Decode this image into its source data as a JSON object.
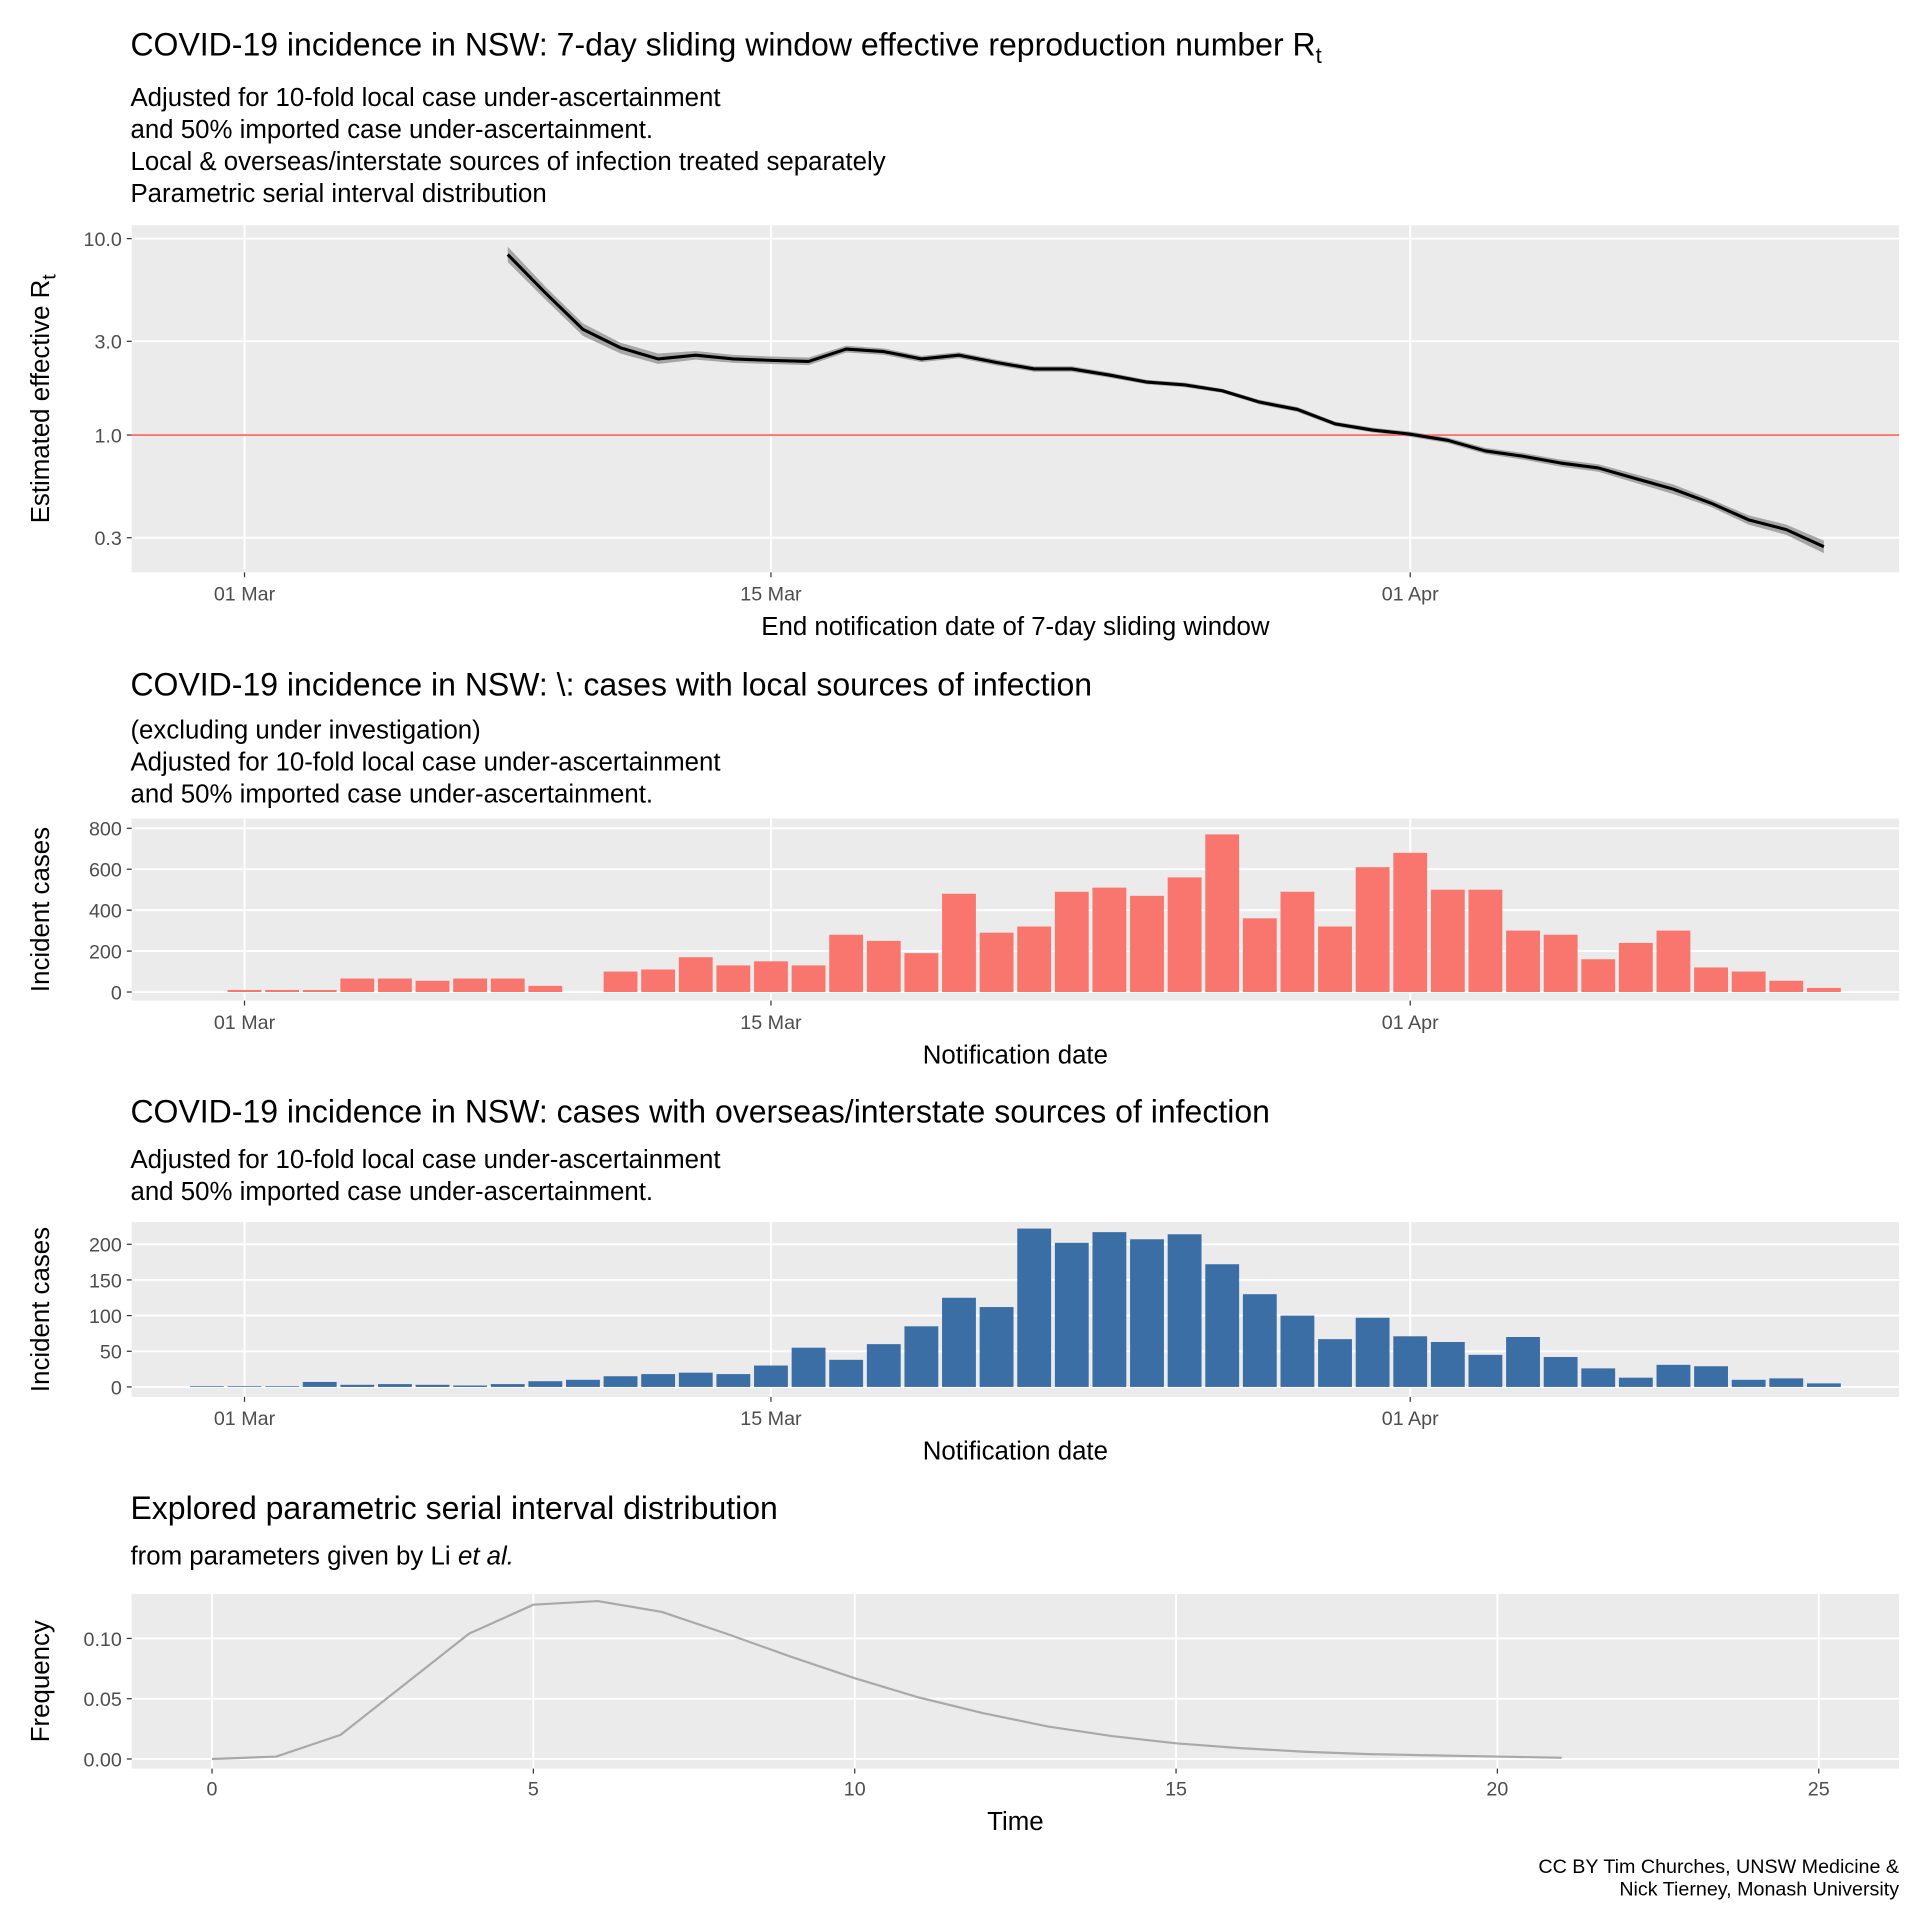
{
  "chart_data": [
    {
      "type": "line",
      "title": "COVID-19 incidence in NSW: 7-day sliding window effective reproduction number R",
      "title_sub": "t",
      "subtitle": [
        "Adjusted for 10-fold local case under-ascertainment",
        "and 50% imported case under-ascertainment.",
        "Local & overseas/interstate sources of infection treated separately",
        "Parametric serial interval distribution"
      ],
      "xlabel": "End notification date of 7-day sliding window",
      "ylabel": "Estimated effective R",
      "ylabel_sub": "t",
      "x": [
        "03-08",
        "03-09",
        "03-10",
        "03-11",
        "03-12",
        "03-13",
        "03-14",
        "03-15",
        "03-16",
        "03-17",
        "03-18",
        "03-19",
        "03-20",
        "03-21",
        "03-22",
        "03-23",
        "03-24",
        "03-25",
        "03-26",
        "03-27",
        "03-28",
        "03-29",
        "03-30",
        "03-31",
        "04-01",
        "04-02",
        "04-03",
        "04-04",
        "04-05",
        "04-06",
        "04-07",
        "04-08",
        "04-09",
        "04-10",
        "04-11",
        "04-12"
      ],
      "values": [
        8.3,
        5.3,
        3.45,
        2.78,
        2.44,
        2.55,
        2.44,
        2.4,
        2.37,
        2.74,
        2.66,
        2.44,
        2.55,
        2.34,
        2.17,
        2.17,
        2.02,
        1.86,
        1.8,
        1.68,
        1.47,
        1.35,
        1.14,
        1.06,
        1.01,
        0.94,
        0.83,
        0.78,
        0.72,
        0.68,
        0.6,
        0.53,
        0.45,
        0.37,
        0.33,
        0.27
      ],
      "lower": [
        7.6,
        4.9,
        3.2,
        2.6,
        2.3,
        2.42,
        2.33,
        2.3,
        2.27,
        2.63,
        2.56,
        2.35,
        2.46,
        2.26,
        2.1,
        2.1,
        1.96,
        1.81,
        1.75,
        1.64,
        1.43,
        1.31,
        1.11,
        1.03,
        0.98,
        0.91,
        0.8,
        0.75,
        0.69,
        0.65,
        0.57,
        0.5,
        0.43,
        0.35,
        0.31,
        0.25
      ],
      "upper": [
        9.1,
        5.7,
        3.7,
        2.95,
        2.6,
        2.68,
        2.56,
        2.51,
        2.48,
        2.85,
        2.76,
        2.53,
        2.64,
        2.42,
        2.24,
        2.24,
        2.08,
        1.91,
        1.85,
        1.72,
        1.51,
        1.39,
        1.17,
        1.09,
        1.04,
        0.97,
        0.86,
        0.81,
        0.75,
        0.71,
        0.63,
        0.56,
        0.47,
        0.39,
        0.35,
        0.29
      ],
      "color": "#000000",
      "ribbon_color": "#a6a6a6",
      "hline": {
        "value": 1,
        "color": "#f8766d"
      },
      "log_y": true,
      "grid": true,
      "xlim": [
        "02-27",
        "04-14"
      ],
      "xticks": [
        {
          "value": "03-01",
          "label": "01 Mar"
        },
        {
          "value": "03-15",
          "label": "15 Mar"
        },
        {
          "value": "04-01",
          "label": "01 Apr"
        }
      ],
      "ylim": [
        0.2,
        11.7
      ],
      "yticks": [
        0.3,
        {
          "value": 1,
          "label": "1.0"
        },
        {
          "value": 3,
          "label": "3.0"
        },
        {
          "value": 10,
          "label": "10.0"
        }
      ]
    },
    {
      "type": "bar",
      "title": "COVID-19 incidence in NSW: \\: cases with local sources of infection",
      "subtitle": [
        "(excluding under investigation)",
        "Adjusted for 10-fold local case under-ascertainment",
        "and 50% imported case under-ascertainment."
      ],
      "xlabel": "Notification date",
      "ylabel": "Incident cases",
      "x": [
        "03-01",
        "03-02",
        "03-03",
        "03-04",
        "03-05",
        "03-06",
        "03-07",
        "03-08",
        "03-09",
        "03-10",
        "03-11",
        "03-12",
        "03-13",
        "03-14",
        "03-15",
        "03-16",
        "03-17",
        "03-18",
        "03-19",
        "03-20",
        "03-21",
        "03-22",
        "03-23",
        "03-24",
        "03-25",
        "03-26",
        "03-27",
        "03-28",
        "03-29",
        "03-30",
        "03-31",
        "04-01",
        "04-02",
        "04-03",
        "04-04",
        "04-05",
        "04-06",
        "04-07",
        "04-08",
        "04-09",
        "04-10",
        "04-11",
        "04-12"
      ],
      "values": [
        10,
        10,
        10,
        66,
        66,
        55,
        66,
        66,
        30,
        0,
        100,
        110,
        170,
        130,
        150,
        130,
        280,
        250,
        190,
        480,
        290,
        320,
        490,
        510,
        470,
        560,
        770,
        360,
        490,
        320,
        610,
        680,
        500,
        500,
        300,
        280,
        160,
        240,
        300,
        120,
        100,
        55,
        20
      ],
      "color": "#f8766d",
      "grid": true,
      "xlim": [
        "02-27",
        "04-14"
      ],
      "xticks": [
        {
          "value": "03-01",
          "label": "01 Mar"
        },
        {
          "value": "03-15",
          "label": "15 Mar"
        },
        {
          "value": "04-01",
          "label": "01 Apr"
        }
      ],
      "ylim": [
        -42,
        848
      ],
      "yticks": [
        0,
        200,
        400,
        600,
        800
      ]
    },
    {
      "type": "bar",
      "title": "COVID-19 incidence in NSW: cases with overseas/interstate sources of infection",
      "subtitle": [
        "Adjusted for 10-fold local case under-ascertainment",
        "and 50% imported case under-ascertainment."
      ],
      "xlabel": "Notification date",
      "ylabel": "Incident cases",
      "x": [
        "02-29",
        "03-01",
        "03-02",
        "03-03",
        "03-04",
        "03-05",
        "03-06",
        "03-07",
        "03-08",
        "03-09",
        "03-10",
        "03-11",
        "03-12",
        "03-13",
        "03-14",
        "03-15",
        "03-16",
        "03-17",
        "03-18",
        "03-19",
        "03-20",
        "03-21",
        "03-22",
        "03-23",
        "03-24",
        "03-25",
        "03-26",
        "03-27",
        "03-28",
        "03-29",
        "03-30",
        "03-31",
        "04-01",
        "04-02",
        "04-03",
        "04-04",
        "04-05",
        "04-06",
        "04-07",
        "04-08",
        "04-09",
        "04-10",
        "04-11",
        "04-12"
      ],
      "values": [
        1,
        1,
        1,
        7,
        3,
        4,
        3,
        2,
        4,
        8,
        10,
        15,
        18,
        20,
        18,
        30,
        55,
        38,
        60,
        85,
        125,
        112,
        222,
        202,
        217,
        207,
        214,
        172,
        130,
        100,
        67,
        97,
        71,
        63,
        45,
        70,
        42,
        26,
        13,
        31,
        29,
        10,
        12,
        5
      ],
      "color": "#3b6ea5",
      "grid": true,
      "xlim": [
        "02-27",
        "04-14"
      ],
      "xticks": [
        {
          "value": "03-01",
          "label": "01 Mar"
        },
        {
          "value": "03-15",
          "label": "15 Mar"
        },
        {
          "value": "04-01",
          "label": "01 Apr"
        }
      ],
      "ylim": [
        -14,
        231
      ],
      "yticks": [
        0,
        50,
        100,
        150,
        200
      ]
    },
    {
      "type": "line",
      "title": "Explored parametric serial interval distribution",
      "subtitle": [
        "from parameters given by Li"
      ],
      "subtitle_emphasis": "et al.",
      "xlabel": "Time",
      "ylabel": "Frequency",
      "x": [
        0,
        1,
        2,
        3,
        4,
        5,
        6,
        7,
        8,
        9,
        10,
        11,
        12,
        13,
        14,
        15,
        16,
        17,
        18,
        19,
        20,
        21
      ],
      "values": [
        0,
        0.002,
        0.02,
        0.062,
        0.104,
        0.128,
        0.131,
        0.122,
        0.104,
        0.085,
        0.067,
        0.051,
        0.038,
        0.027,
        0.019,
        0.013,
        0.009,
        0.006,
        0.004,
        0.003,
        0.002,
        0.001
      ],
      "color": "#a9a9a9",
      "grid": true,
      "xlim": [
        -1.25,
        26.25
      ],
      "xticks": [
        0,
        5,
        10,
        15,
        20,
        25
      ],
      "ylim": [
        -0.008,
        0.137
      ],
      "yticks": [
        {
          "value": 0,
          "label": "0.00"
        },
        {
          "value": 0.05,
          "label": "0.05"
        },
        {
          "value": 0.1,
          "label": "0.10"
        }
      ]
    }
  ],
  "caption": [
    "CC BY Tim Churches, UNSW Medicine &",
    "Nick Tierney, Monash University"
  ]
}
